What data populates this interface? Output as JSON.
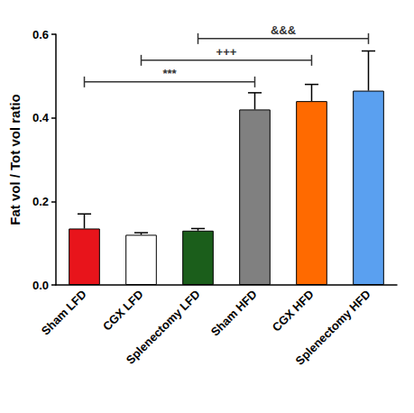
{
  "chart_data": {
    "type": "bar",
    "y_label": "Fat vol / Tot vol ratio",
    "categories": [
      "Sham LFD",
      "CGX LFD",
      "Splenectomy LFD",
      "Sham HFD",
      "CGX HFD",
      "Splenectomy HFD"
    ],
    "values": [
      0.135,
      0.12,
      0.13,
      0.42,
      0.44,
      0.465
    ],
    "errors": [
      0.035,
      0.005,
      0.005,
      0.04,
      0.04,
      0.095
    ],
    "colors": [
      "#e8141b",
      "#ffffff",
      "#1b5e1b",
      "#808080",
      "#ff6a00",
      "#5aa0f0"
    ],
    "ylim": [
      0,
      0.6
    ],
    "yticks": [
      {
        "value": 0,
        "label": "0.0"
      },
      0.2,
      0.4,
      0.6
    ],
    "grid": false,
    "annotations": [
      {
        "text": "***",
        "from": "Sham LFD",
        "to": "Sham HFD"
      },
      {
        "text": "+++",
        "from": "CGX LFD",
        "to": "CGX HFD"
      },
      {
        "text": "&&&",
        "from": "Splenectomy LFD",
        "to": "Splenectomy HFD"
      }
    ]
  }
}
